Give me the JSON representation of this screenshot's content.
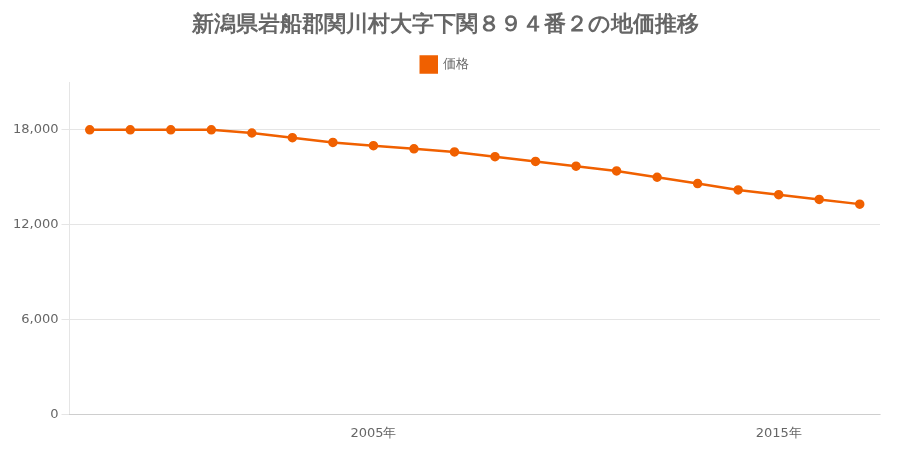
{
  "chart_data": {
    "type": "line",
    "title": "新潟県岩船郡関川村大字下関８９４番２の地価推移",
    "x": [
      1998,
      1999,
      2000,
      2001,
      2002,
      2003,
      2004,
      2005,
      2006,
      2007,
      2008,
      2009,
      2010,
      2011,
      2012,
      2013,
      2014,
      2015,
      2016,
      2017
    ],
    "series": [
      {
        "name": "価格",
        "color": "#f06000",
        "marker": "circle",
        "values": [
          18000,
          18000,
          18000,
          18000,
          17800,
          17500,
          17200,
          17000,
          16800,
          16600,
          16300,
          16000,
          15700,
          15400,
          15000,
          14600,
          14200,
          13900,
          13600,
          13300
        ]
      }
    ],
    "xlim": [
      1997.5,
      2017.5
    ],
    "xticks": [
      {
        "value": 2005,
        "label": "2005年"
      },
      {
        "value": 2015,
        "label": "2015年"
      }
    ],
    "ylim": [
      0,
      21000
    ],
    "yticks": [
      0,
      {
        "value": 6000,
        "label": "6,000"
      },
      {
        "value": 12000,
        "label": "12,000"
      },
      {
        "value": 18000,
        "label": "18,000"
      }
    ],
    "grid": "y",
    "legend": "top"
  }
}
